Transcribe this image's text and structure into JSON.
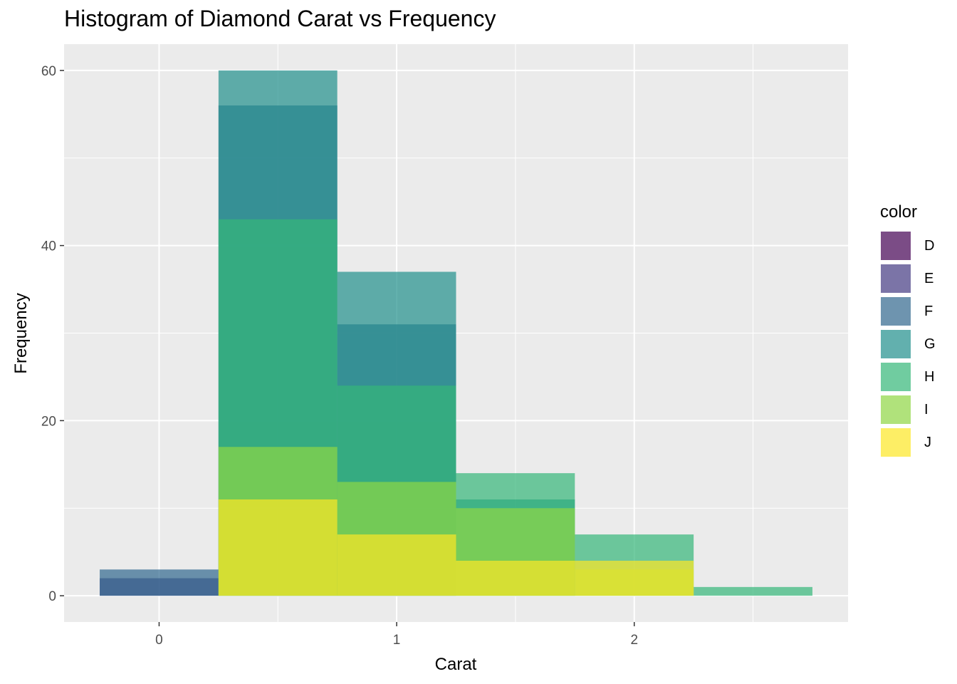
{
  "chart_data": {
    "type": "bar",
    "title": "Histogram of Diamond Carat vs Frequency",
    "xlabel": "Carat",
    "ylabel": "Frequency",
    "xlim": [
      -0.4,
      2.9
    ],
    "ylim": [
      -3,
      63
    ],
    "x_ticks": [
      0,
      1,
      2
    ],
    "y_ticks": [
      0,
      20,
      40,
      60
    ],
    "grid": true,
    "legend_title": "color",
    "legend_position": "right",
    "bins": [
      [
        -0.25,
        0.25
      ],
      [
        0.25,
        0.75
      ],
      [
        0.75,
        1.25
      ],
      [
        1.25,
        1.75
      ],
      [
        1.75,
        2.25
      ],
      [
        2.25,
        2.75
      ]
    ],
    "series": [
      {
        "name": "D",
        "color": "#440154",
        "values": [
          0,
          0,
          0,
          0,
          0,
          0
        ]
      },
      {
        "name": "E",
        "color": "#443A83",
        "values": [
          2,
          0,
          0,
          0,
          0,
          0
        ]
      },
      {
        "name": "F",
        "color": "#31688E",
        "values": [
          3,
          56,
          31,
          0,
          0,
          0
        ]
      },
      {
        "name": "G",
        "color": "#21908C",
        "values": [
          0,
          60,
          37,
          11,
          0,
          0
        ]
      },
      {
        "name": "H",
        "color": "#35B779",
        "values": [
          0,
          43,
          24,
          14,
          7,
          1
        ]
      },
      {
        "name": "I",
        "color": "#8FD744",
        "values": [
          0,
          17,
          13,
          10,
          3,
          0
        ]
      },
      {
        "name": "J",
        "color": "#FDE725",
        "values": [
          0,
          11,
          7,
          4,
          4,
          0
        ]
      }
    ]
  }
}
